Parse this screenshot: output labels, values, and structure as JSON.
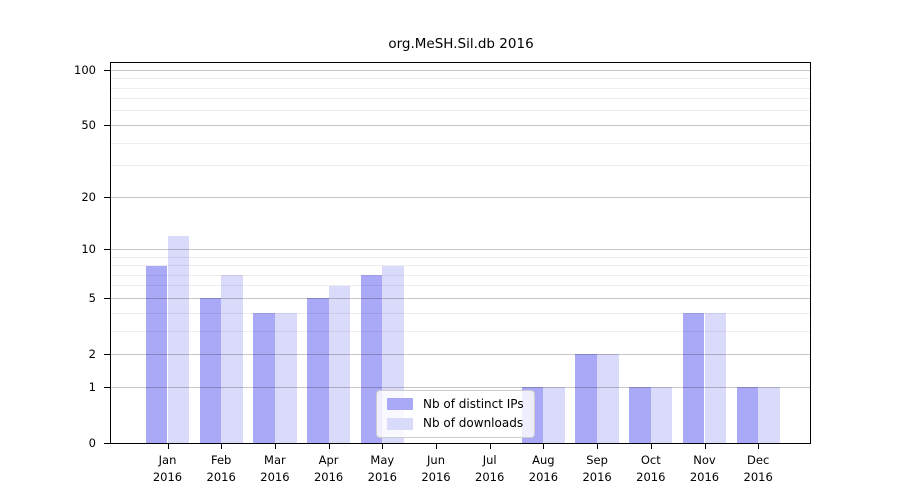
{
  "chart_data": {
    "type": "bar",
    "title": "org.MeSH.Sil.db 2016",
    "year_label": "2016",
    "categories": [
      "Jan",
      "Feb",
      "Mar",
      "Apr",
      "May",
      "Jun",
      "Jul",
      "Aug",
      "Sep",
      "Oct",
      "Nov",
      "Dec"
    ],
    "series": [
      {
        "name": "Nb of distinct IPs",
        "color": "#a9a9f8",
        "values": [
          8,
          5,
          4,
          5,
          7,
          0,
          0,
          1,
          2,
          1,
          4,
          1
        ]
      },
      {
        "name": "Nb of downloads",
        "color": "#dadafa",
        "values": [
          12,
          7,
          4,
          6,
          8,
          0,
          0,
          1,
          2,
          1,
          4,
          1
        ]
      }
    ],
    "yscale": "log10(value+1)",
    "ylim": [
      0,
      100
    ],
    "yticks": [
      0,
      1,
      2,
      5,
      10,
      20,
      50,
      100
    ],
    "yticks_minor": [
      3,
      4,
      6,
      7,
      8,
      9,
      30,
      40,
      60,
      70,
      80,
      90
    ],
    "xlabel": "",
    "ylabel": "",
    "grid": "horizontal",
    "legend_position": "inside lower-center"
  },
  "colors": {
    "grid_major": "rgba(0,0,0,0.22)",
    "grid_minor": "rgba(0,0,0,0.07)",
    "spine": "#000000",
    "background": "#ffffff",
    "legend_border": "#cccccc"
  }
}
